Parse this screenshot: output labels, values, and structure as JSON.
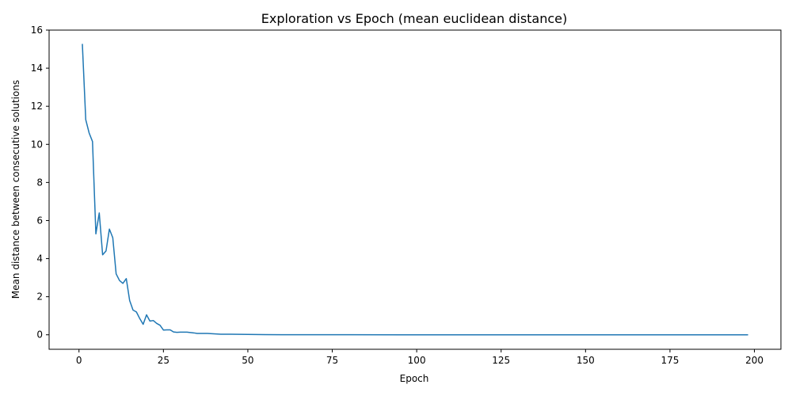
{
  "chart_data": {
    "type": "line",
    "title": "Exploration vs Epoch (mean euclidean distance)",
    "xlabel": "Epoch",
    "ylabel": "Mean distance between consecutive solutions",
    "xlim": [
      -8.85,
      207.85
    ],
    "ylim": [
      -0.76,
      16.0
    ],
    "xticks": [
      0,
      25,
      50,
      75,
      100,
      125,
      150,
      175,
      200
    ],
    "yticks": [
      0,
      2,
      4,
      6,
      8,
      10,
      12,
      14,
      16
    ],
    "xtick_labels": [
      "0",
      "25",
      "50",
      "75",
      "100",
      "125",
      "150",
      "175",
      "200"
    ],
    "ytick_labels": [
      "0",
      "2",
      "4",
      "6",
      "8",
      "10",
      "12",
      "14",
      "16"
    ],
    "grid": false,
    "series": [
      {
        "color": "#1f77b4",
        "points": [
          [
            1,
            15.25
          ],
          [
            2,
            11.3
          ],
          [
            3,
            10.6
          ],
          [
            4,
            10.15
          ],
          [
            5,
            5.3
          ],
          [
            6,
            6.4
          ],
          [
            7,
            4.2
          ],
          [
            8,
            4.4
          ],
          [
            9,
            5.55
          ],
          [
            10,
            5.1
          ],
          [
            11,
            3.2
          ],
          [
            12,
            2.85
          ],
          [
            13,
            2.7
          ],
          [
            14,
            2.95
          ],
          [
            15,
            1.8
          ],
          [
            16,
            1.3
          ],
          [
            17,
            1.2
          ],
          [
            18,
            0.85
          ],
          [
            19,
            0.55
          ],
          [
            20,
            1.05
          ],
          [
            21,
            0.72
          ],
          [
            22,
            0.75
          ],
          [
            23,
            0.6
          ],
          [
            24,
            0.5
          ],
          [
            25,
            0.25
          ],
          [
            26,
            0.26
          ],
          [
            27,
            0.26
          ],
          [
            28,
            0.15
          ],
          [
            29,
            0.13
          ],
          [
            30,
            0.14
          ],
          [
            32,
            0.14
          ],
          [
            34,
            0.1
          ],
          [
            35,
            0.07
          ],
          [
            38,
            0.07
          ],
          [
            40,
            0.05
          ],
          [
            42,
            0.03
          ],
          [
            45,
            0.03
          ],
          [
            50,
            0.02
          ],
          [
            55,
            0.01
          ],
          [
            60,
            0.005
          ],
          [
            70,
            0.003
          ],
          [
            80,
            0.002
          ],
          [
            100,
            0.001
          ],
          [
            150,
            0.001
          ],
          [
            198,
            0.001
          ]
        ]
      }
    ]
  }
}
